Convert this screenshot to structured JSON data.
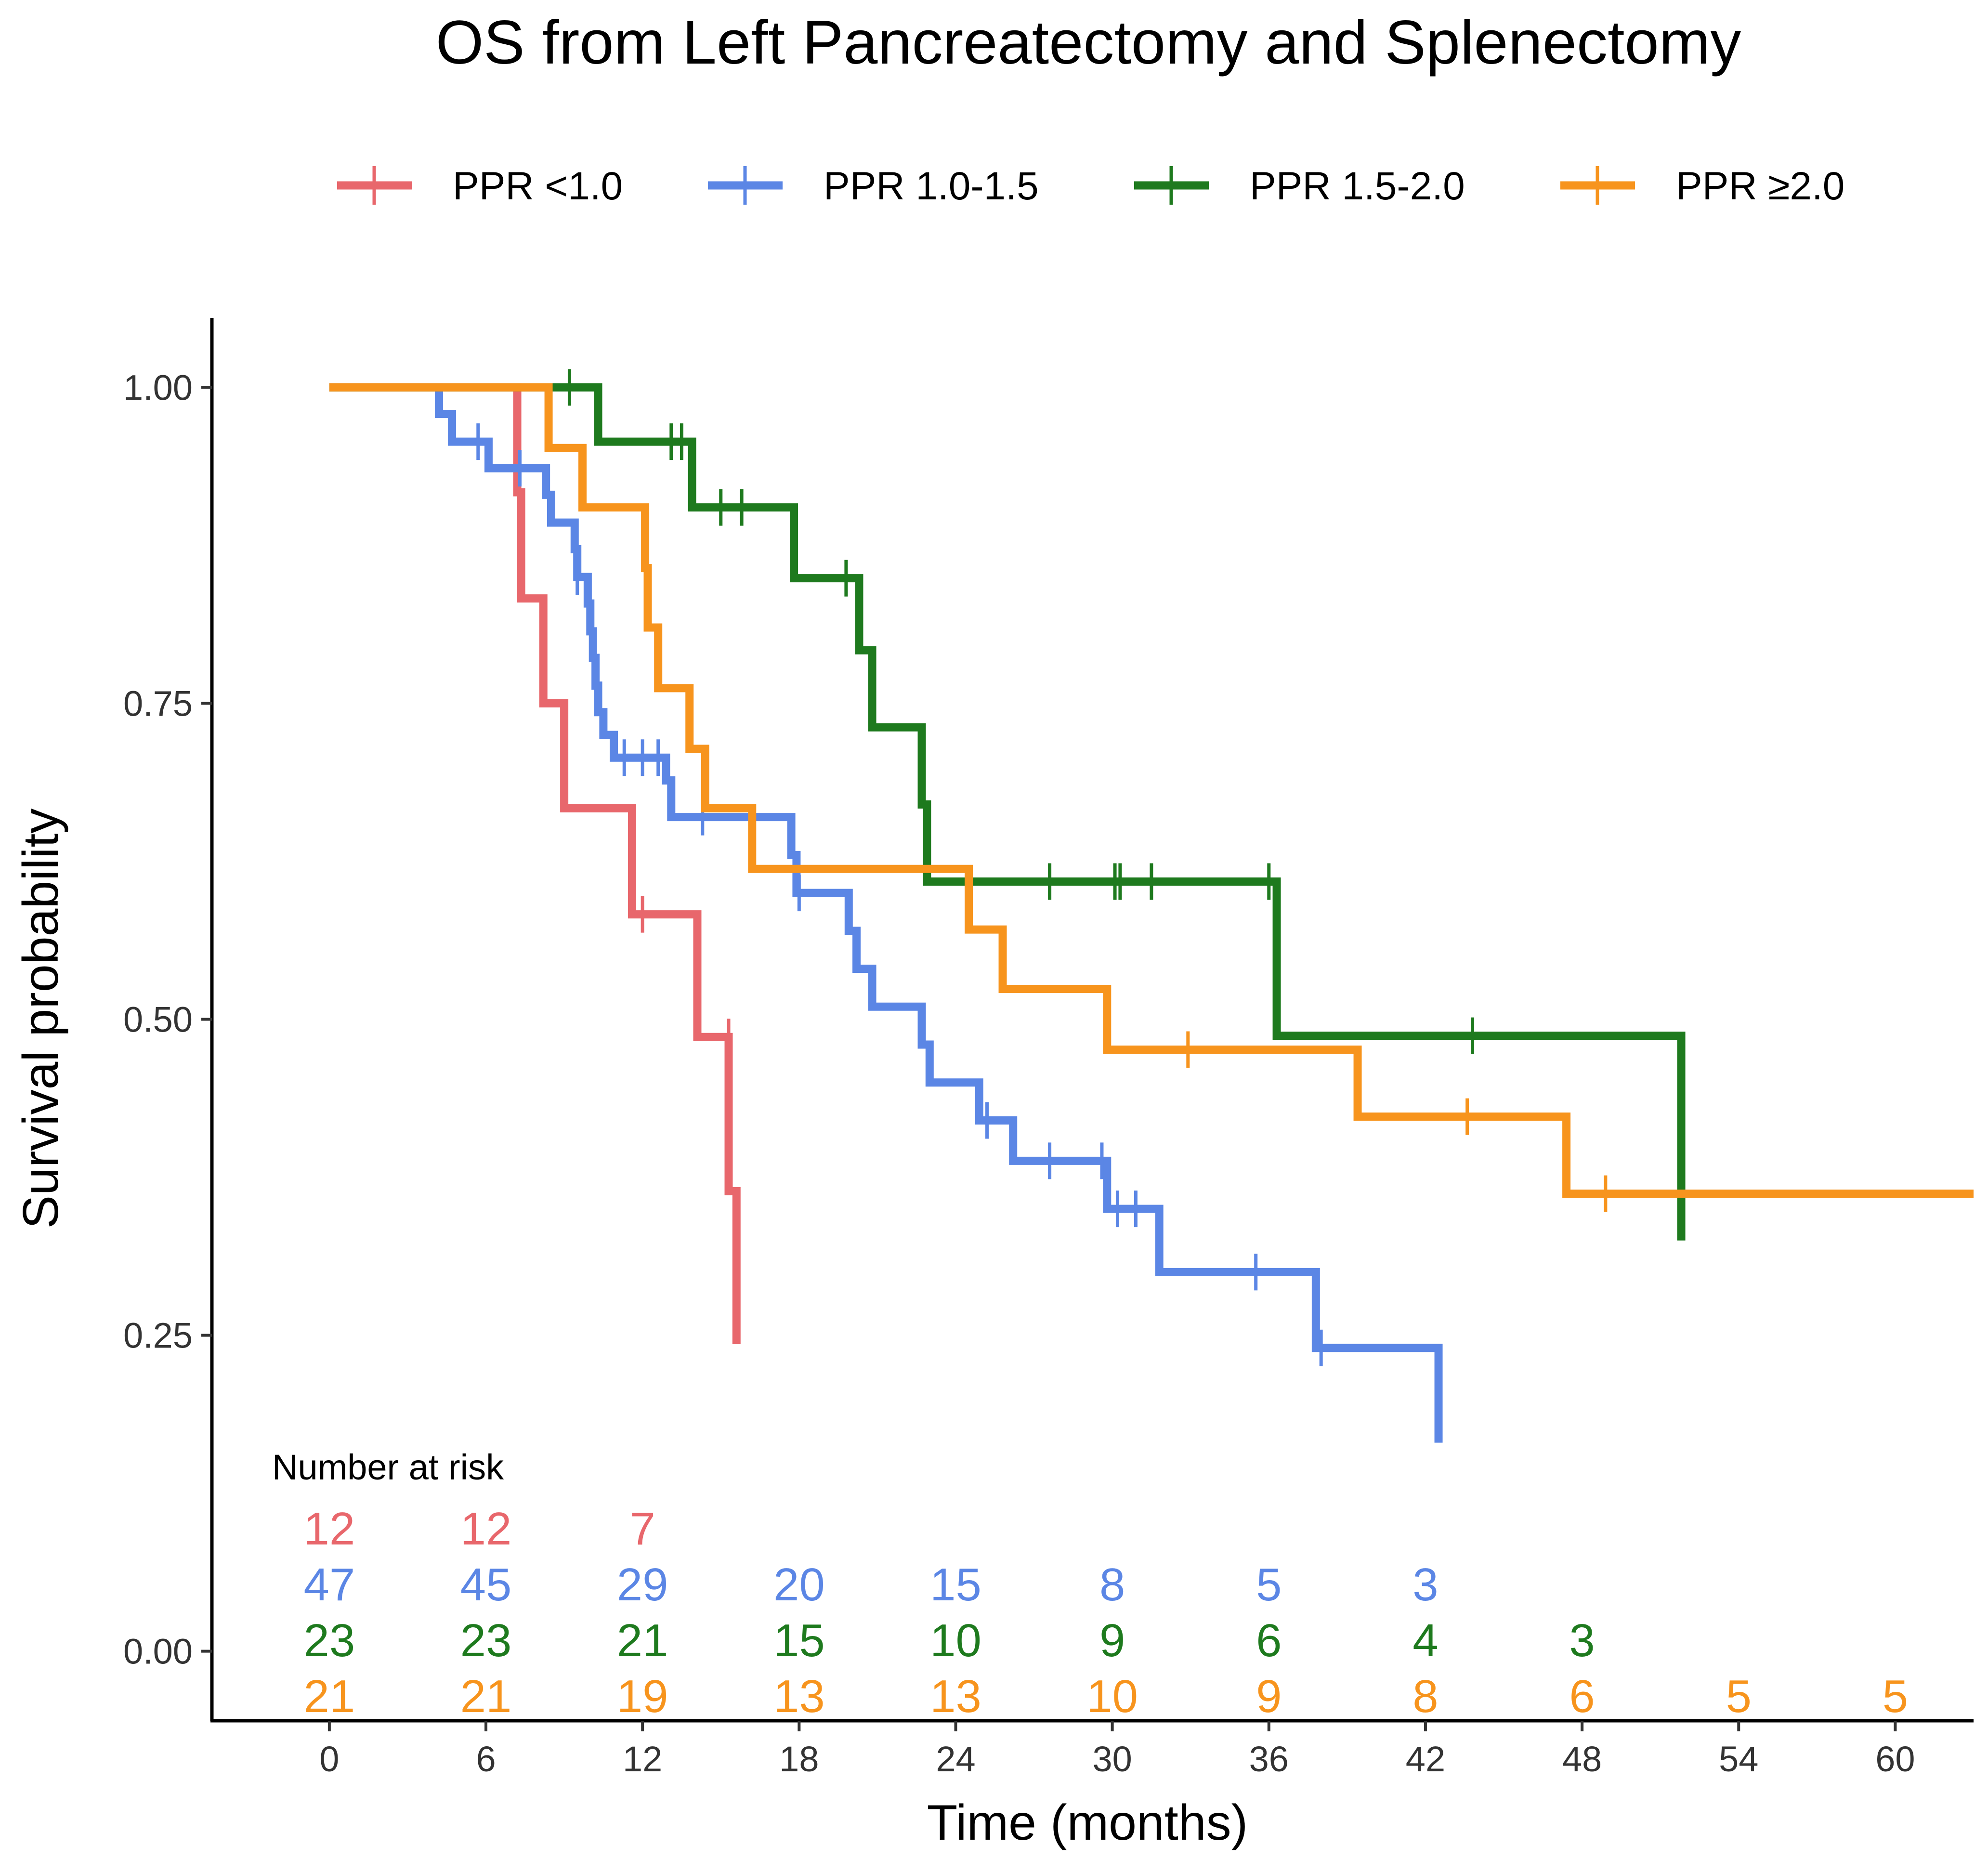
{
  "chart_data": {
    "type": "line",
    "subtype": "kaplan-meier",
    "title": "OS from Left Pancreatectomy and Splenectomy",
    "xlabel": "Time (months)",
    "ylabel": "Survival probability",
    "xlim": [
      -4.5,
      63
    ],
    "ylim": [
      -0.055,
      1.055
    ],
    "x_ticks": [
      0,
      6,
      12,
      18,
      24,
      30,
      36,
      42,
      48,
      54,
      60
    ],
    "y_ticks": [
      0.0,
      0.25,
      0.5,
      0.75,
      1.0
    ],
    "y_tick_labels": [
      "0.00",
      "0.25",
      "0.50",
      "0.75",
      "1.00"
    ],
    "legend_position": "top",
    "series": [
      {
        "name": "PPR <1.0",
        "color": "#E8676C",
        "steps": [
          [
            0,
            1.0
          ],
          [
            7.2,
            0.917
          ],
          [
            7.35,
            0.833
          ],
          [
            8.2,
            0.75
          ],
          [
            9.0,
            0.667
          ],
          [
            11.6,
            0.583
          ],
          [
            14.1,
            0.486
          ],
          [
            15.3,
            0.364
          ],
          [
            15.6,
            0.243
          ]
        ],
        "end": 15.6,
        "censors": [
          [
            12.0,
            0.583
          ],
          [
            15.3,
            0.486
          ]
        ]
      },
      {
        "name": "PPR 1.0-1.5",
        "color": "#5B86E5",
        "steps": [
          [
            0,
            1.0
          ],
          [
            4.2,
            0.979
          ],
          [
            4.7,
            0.957
          ],
          [
            6.1,
            0.936
          ],
          [
            8.3,
            0.915
          ],
          [
            8.5,
            0.893
          ],
          [
            9.4,
            0.872
          ],
          [
            9.5,
            0.85
          ],
          [
            9.9,
            0.829
          ],
          [
            10.0,
            0.807
          ],
          [
            10.1,
            0.786
          ],
          [
            10.2,
            0.764
          ],
          [
            10.3,
            0.743
          ],
          [
            10.5,
            0.725
          ],
          [
            10.9,
            0.707
          ],
          [
            12.9,
            0.689
          ],
          [
            13.1,
            0.66
          ],
          [
            17.7,
            0.63
          ],
          [
            17.9,
            0.6
          ],
          [
            19.9,
            0.57
          ],
          [
            20.2,
            0.54
          ],
          [
            20.8,
            0.51
          ],
          [
            22.7,
            0.48
          ],
          [
            23.0,
            0.45
          ],
          [
            24.9,
            0.42
          ],
          [
            26.2,
            0.388
          ],
          [
            29.8,
            0.35
          ],
          [
            31.8,
            0.3
          ],
          [
            37.8,
            0.24
          ],
          [
            42.5,
            0.165
          ]
        ],
        "end": 42.5,
        "censors": [
          [
            5.7,
            0.957
          ],
          [
            7.3,
            0.936
          ],
          [
            9.5,
            0.85
          ],
          [
            11.3,
            0.707
          ],
          [
            12.0,
            0.707
          ],
          [
            12.6,
            0.707
          ],
          [
            14.3,
            0.66
          ],
          [
            18.0,
            0.6
          ],
          [
            25.2,
            0.42
          ],
          [
            27.6,
            0.388
          ],
          [
            29.6,
            0.388
          ],
          [
            30.2,
            0.35
          ],
          [
            30.9,
            0.35
          ],
          [
            35.5,
            0.3
          ],
          [
            38.0,
            0.24
          ]
        ]
      },
      {
        "name": "PPR 1.5-2.0",
        "color": "#1E7A1E",
        "steps": [
          [
            0,
            1.0
          ],
          [
            10.3,
            0.957
          ],
          [
            13.9,
            0.905
          ],
          [
            17.8,
            0.849
          ],
          [
            20.3,
            0.792
          ],
          [
            20.8,
            0.731
          ],
          [
            22.7,
            0.67
          ],
          [
            22.9,
            0.609
          ],
          [
            36.3,
            0.487
          ],
          [
            51.8,
            0.325
          ]
        ],
        "end": 51.8,
        "censors": [
          [
            9.2,
            1.0
          ],
          [
            13.1,
            0.957
          ],
          [
            13.5,
            0.957
          ],
          [
            15.0,
            0.905
          ],
          [
            15.8,
            0.905
          ],
          [
            19.8,
            0.849
          ],
          [
            27.6,
            0.609
          ],
          [
            30.1,
            0.609
          ],
          [
            30.3,
            0.609
          ],
          [
            31.5,
            0.609
          ],
          [
            36.0,
            0.609
          ],
          [
            43.8,
            0.487
          ]
        ]
      },
      {
        "name": "PPR ≥2.0",
        "color": "#F7941D",
        "steps": [
          [
            0,
            1.0
          ],
          [
            8.4,
            0.952
          ],
          [
            9.7,
            0.905
          ],
          [
            12.1,
            0.857
          ],
          [
            12.2,
            0.81
          ],
          [
            12.6,
            0.762
          ],
          [
            13.8,
            0.714
          ],
          [
            14.4,
            0.667
          ],
          [
            16.2,
            0.619
          ],
          [
            24.5,
            0.571
          ],
          [
            25.8,
            0.524
          ],
          [
            29.8,
            0.476
          ],
          [
            39.4,
            0.423
          ],
          [
            47.4,
            0.362
          ]
        ],
        "end": 63,
        "censors": [
          [
            32.9,
            0.476
          ],
          [
            43.6,
            0.423
          ],
          [
            48.9,
            0.362
          ]
        ]
      }
    ],
    "number_at_risk": {
      "title": "Number at risk",
      "times": [
        0,
        6,
        12,
        18,
        24,
        30,
        36,
        42,
        48,
        54,
        60
      ],
      "rows": [
        {
          "series": "PPR <1.0",
          "values": [
            12,
            12,
            7
          ]
        },
        {
          "series": "PPR 1.0-1.5",
          "values": [
            47,
            45,
            29,
            20,
            15,
            8,
            5,
            3
          ]
        },
        {
          "series": "PPR 1.5-2.0",
          "values": [
            23,
            23,
            21,
            15,
            10,
            9,
            6,
            4,
            3
          ]
        },
        {
          "series": "PPR ≥2.0",
          "values": [
            21,
            21,
            19,
            13,
            13,
            10,
            9,
            8,
            6,
            5,
            5
          ]
        }
      ]
    }
  }
}
